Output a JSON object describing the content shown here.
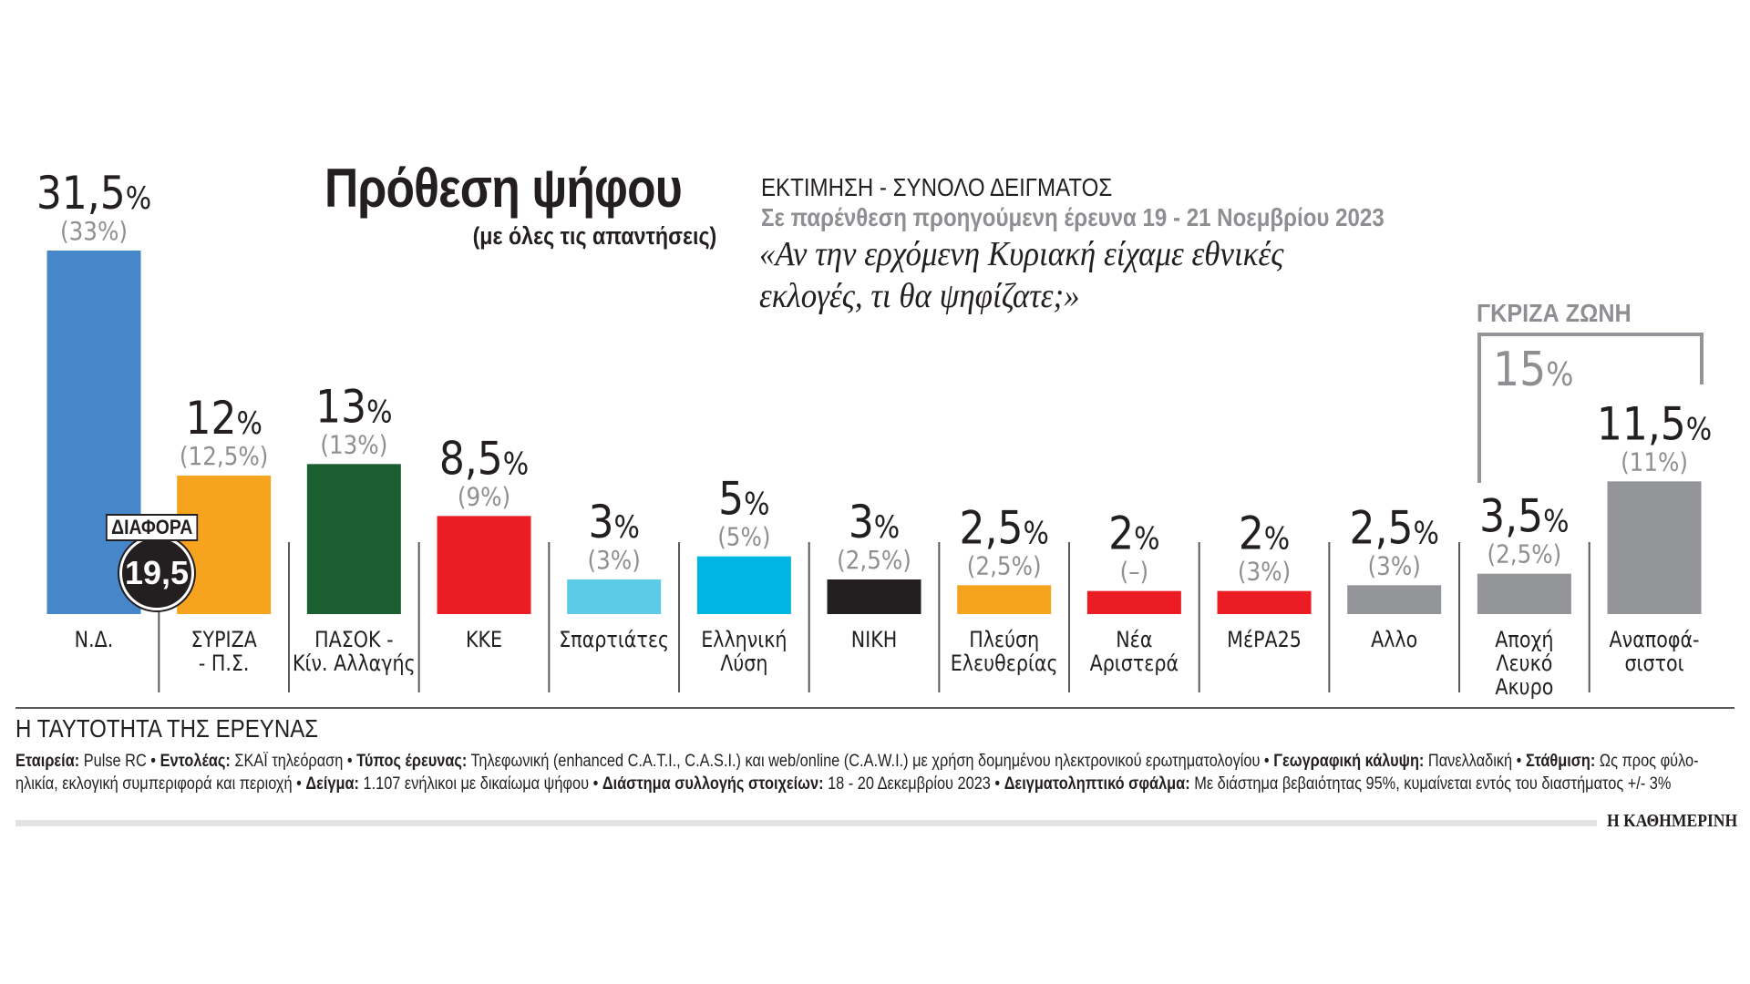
{
  "header": {
    "title": "Πρόθεση ψήφου",
    "subtitle": "(με όλες τις απαντήσεις)",
    "estimate_label": "ΕΚΤΙΜΗΣΗ - ΣΥΝΟΛΟ ΔΕΙΓΜΑΤΟΣ",
    "previous_note": "Σε παρένθεση προηγούμενη έρευνα 19 - 21 Νοεμβρίου 2023",
    "question_line1": "«Αν την ερχόμενη Κυριακή είχαμε εθνικές",
    "question_line2": "εκλογές, τι θα ψηφίζατε;»"
  },
  "difference": {
    "label": "ΔΙΑΦΟΡΑ",
    "value": "19,5"
  },
  "grey_zone": {
    "label": "ΓΚΡΙΖΑ ΖΩΝΗ",
    "value": "15",
    "pct": "%"
  },
  "chart_data": {
    "type": "bar",
    "title": "Πρόθεση ψήφου",
    "subtitle": "(με όλες τις απαντήσεις)",
    "xlabel": "",
    "ylabel": "",
    "ylim": [
      0,
      31.5
    ],
    "grid": false,
    "categories": [
      {
        "line1": "Ν.Δ.",
        "line2": "",
        "line3": ""
      },
      {
        "line1": "ΣΥΡΙΖΑ",
        "line2": "- Π.Σ.",
        "line3": ""
      },
      {
        "line1": "ΠΑΣΟΚ -",
        "line2": "Κίν. Αλλαγής",
        "line3": ""
      },
      {
        "line1": "ΚΚΕ",
        "line2": "",
        "line3": ""
      },
      {
        "line1": "Σπαρτιάτες",
        "line2": "",
        "line3": ""
      },
      {
        "line1": "Ελληνική",
        "line2": "Λύση",
        "line3": ""
      },
      {
        "line1": "ΝΙΚΗ",
        "line2": "",
        "line3": ""
      },
      {
        "line1": "Πλεύση",
        "line2": "Ελευθερίας",
        "line3": ""
      },
      {
        "line1": "Νέα",
        "line2": "Αριστερά",
        "line3": ""
      },
      {
        "line1": "ΜέΡΑ25",
        "line2": "",
        "line3": ""
      },
      {
        "line1": "Αλλο",
        "line2": "",
        "line3": ""
      },
      {
        "line1": "Αποχή",
        "line2": "Λευκό",
        "line3": "Ακυρο"
      },
      {
        "line1": "Αναποφά-",
        "line2": "σιστοι",
        "line3": ""
      }
    ],
    "series": [
      {
        "name": "Εκτίμηση",
        "values": [
          31.5,
          12,
          13,
          8.5,
          3,
          5,
          3,
          2.5,
          2,
          2,
          2.5,
          3.5,
          11.5
        ],
        "labels": [
          "31,5",
          "12",
          "13",
          "8,5",
          "3",
          "5",
          "3",
          "2,5",
          "2",
          "2",
          "2,5",
          "3,5",
          "11,5"
        ]
      },
      {
        "name": "Προηγούμενη έρευνα 19 - 21 Νοεμβρίου 2023",
        "values": [
          33,
          12.5,
          13,
          9,
          3,
          5,
          2.5,
          2.5,
          null,
          3,
          3,
          2.5,
          11
        ],
        "labels": [
          "(33%)",
          "(12,5%)",
          "(13%)",
          "(9%)",
          "(3%)",
          "(5%)",
          "(2,5%)",
          "(2,5%)",
          "(–)",
          "(3%)",
          "(3%)",
          "(2,5%)",
          "(11%)"
        ]
      }
    ],
    "pct_symbol": "%",
    "colors": [
      "#4587c9",
      "#f6a31e",
      "#1b5e30",
      "#ec1c24",
      "#5ccbe8",
      "#00b5e2",
      "#231f20",
      "#f6a31e",
      "#ec1c24",
      "#ec1c24",
      "#939598",
      "#939598",
      "#939598"
    ]
  },
  "footer": {
    "identity_title": "Η ΤΑΥΤΟΤΗΤΑ ΤΗΣ ΕΡΕΥΝΑΣ",
    "items": [
      {
        "key": "Εταιρεία:",
        "value": " Pulse RC • "
      },
      {
        "key": "Εντολέας:",
        "value": " ΣΚΑΪ τηλεόραση • "
      },
      {
        "key": "Τύπος έρευνας:",
        "value": " Τηλεφωνική (enhanced C.A.T.I., C.A.S.I.) και web/online (C.A.W.I.) με χρήση δομημένου ηλεκτρονικού ερωτηματολογίου • "
      },
      {
        "key": "Γεωγραφική κάλυψη:",
        "value": " Πανελλαδική • "
      },
      {
        "key": "Στάθμιση:",
        "value": " Ως προς φύλο-ηλικία, εκλογική συμπεριφορά και περιοχή • "
      },
      {
        "key": "Δείγμα:",
        "value": " 1.107 ενήλικοι με δικαίωμα ψήφου • "
      },
      {
        "key": "Διάστημα συλλογής στοιχείων:",
        "value": " 18 - 20 Δεκεμβρίου 2023 • "
      },
      {
        "key": "Δειγματοληπτικό σφάλμα:",
        "value": " Με διάστημα βεβαιότητας 95%, κυμαίνεται εντός του διαστήματος +/- 3%"
      }
    ],
    "logo": "Η ΚΑΘΗΜΕΡΙΝΗ"
  }
}
